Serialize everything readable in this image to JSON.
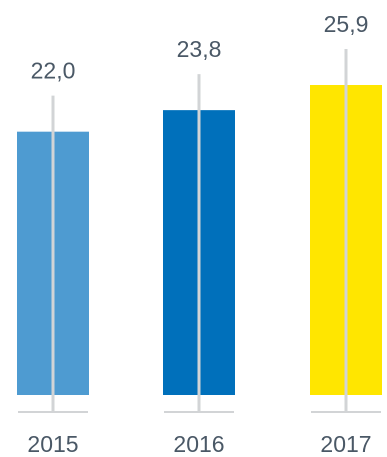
{
  "chart_data": {
    "type": "bar",
    "categories": [
      "2015",
      "2016",
      "2017"
    ],
    "values": [
      22.0,
      23.8,
      25.9
    ],
    "value_labels": [
      "22,0",
      "23,8",
      "25,9"
    ],
    "colors": [
      "#4e9bd1",
      "#0070bb",
      "#ffe600"
    ],
    "line_color": "#d2d4d6",
    "text_color": "#4a5866",
    "title": "",
    "xlabel": "",
    "ylabel": "",
    "ylim": [
      0,
      25.9
    ],
    "grid": false,
    "legend": "none"
  }
}
